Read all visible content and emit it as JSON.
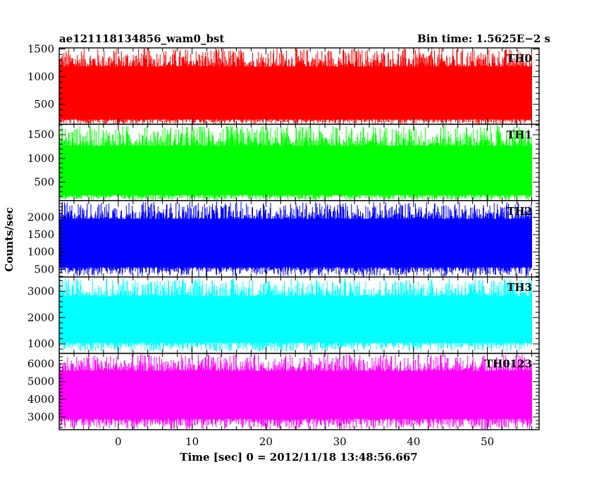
{
  "header": {
    "title": "ae121118134856_wam0_bst",
    "bin_time": "Bin time: 1.5625E−2 s"
  },
  "chart_data": {
    "type": "line",
    "ylabel": "Counts/sec",
    "xlabel": "Time [sec] 0 = 2012/11/18 13:48:56.667",
    "xlim": [
      -8,
      57
    ],
    "x_ticks": [
      0,
      10,
      20,
      30,
      40,
      50
    ],
    "x_data_range": [
      -8,
      56
    ],
    "grid": false,
    "panels": [
      {
        "name": "TH0",
        "color": "#ff0000",
        "ylim": [
          140,
          1520
        ],
        "y_ticks": [
          500,
          1000,
          1500
        ],
        "band_low": 230,
        "band_high": 1180,
        "min": 140,
        "max": 1520
      },
      {
        "name": "TH1",
        "color": "#00ff00",
        "ylim": [
          110,
          1720
        ],
        "y_ticks": [
          500,
          1000,
          1500
        ],
        "band_low": 230,
        "band_high": 1260,
        "min": 120,
        "max": 1700
      },
      {
        "name": "TH2",
        "color": "#0000ff",
        "ylim": [
          280,
          2480
        ],
        "y_ticks": [
          500,
          1000,
          1500,
          2000
        ],
        "band_low": 560,
        "band_high": 1950,
        "min": 300,
        "max": 2450
      },
      {
        "name": "TH3",
        "color": "#00ffff",
        "ylim": [
          640,
          3540
        ],
        "y_ticks": [
          1000,
          2000,
          3000
        ],
        "band_low": 1050,
        "band_high": 2800,
        "min": 700,
        "max": 3500
      },
      {
        "name": "TH0123",
        "color": "#ff00ff",
        "ylim": [
          2280,
          6600
        ],
        "y_ticks": [
          3000,
          4000,
          5000,
          6000
        ],
        "band_low": 2900,
        "band_high": 5600,
        "min": 2300,
        "max": 6550
      }
    ]
  }
}
